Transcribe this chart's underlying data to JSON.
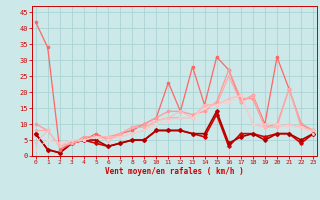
{
  "xlabel": "Vent moyen/en rafales ( km/h )",
  "bg_color": "#cce8e8",
  "grid_color": "#aad4d4",
  "x_ticks": [
    0,
    1,
    2,
    3,
    4,
    5,
    6,
    7,
    8,
    9,
    10,
    11,
    12,
    13,
    14,
    15,
    16,
    17,
    18,
    19,
    20,
    21,
    22,
    23
  ],
  "y_ticks": [
    0,
    5,
    10,
    15,
    20,
    25,
    30,
    35,
    40,
    45
  ],
  "ylim": [
    0,
    47
  ],
  "xlim": [
    -0.3,
    23.3
  ],
  "series": [
    {
      "color": "#dd0000",
      "lw": 1.2,
      "marker": "D",
      "ms": 1.8,
      "data": [
        7,
        2,
        1,
        4,
        5,
        4,
        3,
        4,
        5,
        5,
        8,
        8,
        8,
        7,
        6,
        13,
        3,
        7,
        7,
        6,
        7,
        7,
        4,
        7
      ]
    },
    {
      "color": "#aa0000",
      "lw": 1.2,
      "marker": "D",
      "ms": 1.8,
      "data": [
        7,
        2,
        1,
        4,
        5,
        5,
        3,
        4,
        5,
        5,
        8,
        8,
        8,
        7,
        7,
        14,
        4,
        6,
        7,
        5,
        7,
        7,
        5,
        7
      ]
    },
    {
      "color": "#ff6666",
      "lw": 0.9,
      "marker": "o",
      "ms": 1.6,
      "data": [
        42,
        34,
        2,
        4,
        5,
        7,
        5,
        7,
        8,
        10,
        12,
        23,
        14,
        28,
        16,
        31,
        27,
        17,
        19,
        10,
        31,
        21,
        10,
        8
      ]
    },
    {
      "color": "#ff9999",
      "lw": 0.9,
      "marker": "o",
      "ms": 1.6,
      "data": [
        10,
        8,
        3,
        4,
        6,
        6,
        6,
        7,
        9,
        10,
        12,
        14,
        14,
        13,
        14,
        17,
        27,
        18,
        18,
        9,
        10,
        21,
        10,
        8
      ]
    },
    {
      "color": "#ffaaaa",
      "lw": 0.9,
      "marker": "o",
      "ms": 1.4,
      "data": [
        8,
        8,
        3,
        4,
        5,
        6,
        5,
        7,
        9,
        9,
        11,
        12,
        12,
        12,
        16,
        16,
        25,
        17,
        19,
        9,
        9,
        21,
        9,
        8
      ]
    },
    {
      "color": "#ffbbbb",
      "lw": 0.8,
      "marker": "o",
      "ms": 1.2,
      "data": [
        4,
        8,
        3,
        5,
        5,
        6,
        6,
        6,
        7,
        8,
        11,
        12,
        14,
        12,
        16,
        16,
        18,
        19,
        10,
        9,
        9,
        10,
        9,
        8
      ]
    },
    {
      "color": "#ffcccc",
      "lw": 0.7,
      "marker": "o",
      "ms": 1.0,
      "data": [
        2,
        5,
        4,
        5,
        5,
        6,
        5,
        6,
        7,
        8,
        10,
        11,
        12,
        12,
        15,
        16,
        17,
        19,
        10,
        10,
        10,
        9,
        9,
        7
      ]
    }
  ]
}
